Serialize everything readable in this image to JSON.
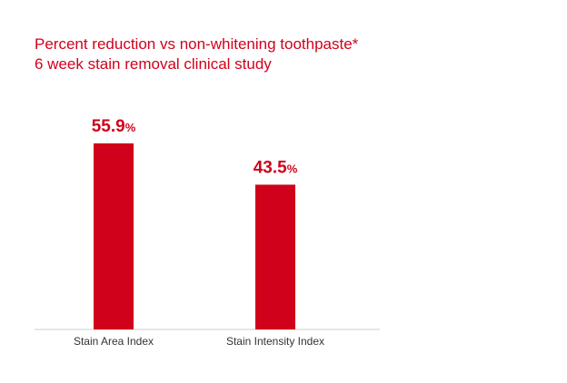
{
  "chart_data": {
    "type": "bar",
    "title": "Percent reduction vs non-whitening toothpaste*",
    "subtitle": "6 week stain removal clinical study",
    "categories": [
      "Stain Area Index",
      "Stain Intensity Index"
    ],
    "values": [
      55.9,
      43.5
    ],
    "value_suffix": "%",
    "xlabel": "",
    "ylabel": "",
    "ylim": [
      0,
      60
    ],
    "grid": false,
    "legend": "none",
    "bar_color": "#d0021b",
    "axis_color": "#cccccc"
  }
}
